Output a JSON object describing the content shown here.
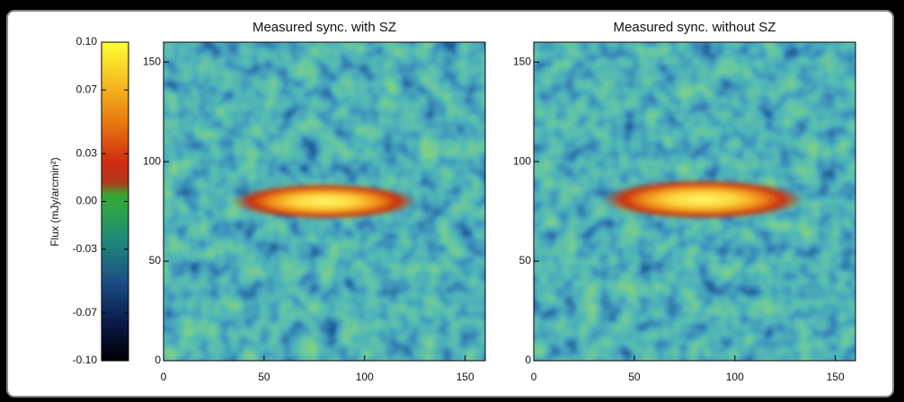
{
  "chart_data": [
    {
      "type": "heatmap",
      "title": "Measured sync. with SZ",
      "xlim": [
        0,
        160
      ],
      "ylim": [
        0,
        160
      ],
      "xticks": [
        0,
        50,
        100,
        150
      ],
      "yticks": [
        0,
        50,
        100,
        150
      ],
      "colorbar": {
        "label": "Flux (mJy/arcmin²)",
        "lim": [
          -0.1,
          0.1
        ],
        "ticks": [
          {
            "value": 0.1,
            "label": "0.10"
          },
          {
            "value": 0.07,
            "label": "0.07"
          },
          {
            "value": 0.03,
            "label": "0.03"
          },
          {
            "value": 0,
            "label": "0.00"
          },
          {
            "value": -0.03,
            "label": "-0.03"
          },
          {
            "value": -0.07,
            "label": "-0.07"
          },
          {
            "value": -0.1,
            "label": "-0.10"
          }
        ]
      }
    },
    {
      "type": "heatmap",
      "title": "Measured sync. without SZ",
      "xlim": [
        0,
        160
      ],
      "ylim": [
        0,
        160
      ],
      "xticks": [
        0,
        50,
        100,
        150
      ],
      "yticks": [
        0,
        50,
        100,
        150
      ]
    }
  ]
}
